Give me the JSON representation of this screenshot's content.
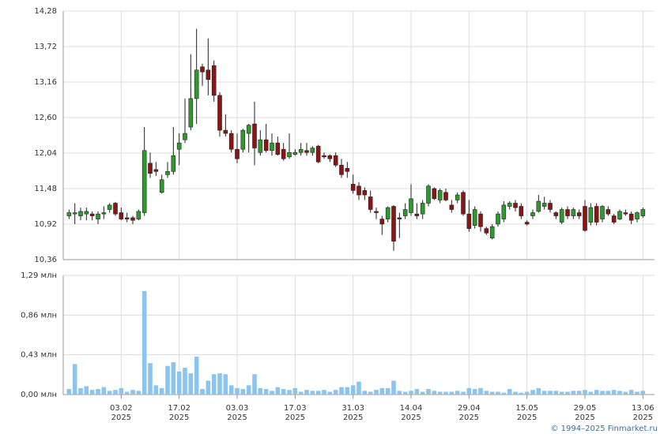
{
  "chart_data": [
    {
      "type": "candlestick",
      "up_color": "#2e9a2e",
      "down_color": "#8b1414",
      "xlim": [
        -1,
        101
      ],
      "ylim": [
        10.36,
        14.28
      ],
      "yticks": [
        {
          "value": 10.36,
          "label": "10,36"
        },
        {
          "value": 10.92,
          "label": "10,92"
        },
        {
          "value": 11.48,
          "label": "11,48"
        },
        {
          "value": 12.04,
          "label": "12,04"
        },
        {
          "value": 12.6,
          "label": "12,60"
        },
        {
          "value": 13.16,
          "label": "13,16"
        },
        {
          "value": 13.72,
          "label": "13,72"
        },
        {
          "value": 14.28,
          "label": "14,28"
        }
      ],
      "open": [
        11.05,
        11.08,
        11.05,
        11.08,
        11.08,
        11.0,
        11.08,
        11.15,
        11.25,
        11.1,
        11.02,
        11.02,
        11.0,
        11.1,
        11.88,
        11.78,
        11.42,
        11.7,
        11.75,
        12.1,
        12.25,
        12.45,
        12.9,
        13.4,
        13.35,
        13.42,
        12.95,
        12.4,
        12.35,
        12.1,
        12.1,
        12.35,
        12.5,
        12.05,
        12.25,
        12.08,
        12.2,
        12.1,
        11.98,
        12.02,
        12.05,
        12.08,
        12.05,
        12.15,
        12.0,
        12.0,
        12.0,
        11.85,
        11.8,
        11.55,
        11.52,
        11.45,
        11.35,
        11.12,
        11.0,
        11.0,
        11.2,
        11.02,
        11.05,
        11.1,
        11.08,
        11.08,
        11.25,
        11.48,
        11.3,
        11.42,
        11.22,
        11.3,
        11.42,
        11.08,
        10.9,
        11.08,
        10.85,
        10.7,
        10.92,
        11.0,
        11.2,
        11.25,
        11.2,
        10.95,
        11.05,
        11.12,
        11.2,
        11.25,
        11.1,
        10.95,
        11.15,
        11.05,
        11.1,
        11.2,
        10.95,
        11.2,
        11.0,
        11.15,
        11.05,
        11.0,
        11.1,
        11.08,
        11.0,
        11.05
      ],
      "high": [
        11.15,
        11.25,
        11.18,
        11.18,
        11.12,
        11.12,
        11.2,
        11.25,
        11.27,
        11.18,
        11.1,
        11.05,
        11.15,
        12.45,
        12.05,
        11.9,
        11.7,
        11.9,
        12.45,
        12.35,
        12.9,
        13.6,
        14.0,
        13.45,
        13.85,
        13.5,
        13.0,
        12.65,
        12.4,
        12.35,
        12.42,
        12.5,
        12.85,
        12.4,
        12.5,
        12.35,
        12.3,
        12.2,
        12.35,
        12.1,
        12.2,
        12.2,
        12.15,
        12.17,
        12.05,
        12.02,
        12.05,
        11.95,
        11.9,
        11.7,
        11.58,
        11.5,
        11.45,
        11.18,
        11.05,
        11.2,
        11.22,
        11.1,
        11.25,
        11.55,
        11.25,
        11.3,
        11.55,
        11.5,
        11.48,
        11.48,
        11.3,
        11.42,
        11.45,
        11.3,
        11.2,
        11.12,
        10.88,
        10.92,
        11.12,
        11.28,
        11.28,
        11.3,
        11.25,
        10.98,
        11.15,
        11.38,
        11.35,
        11.3,
        11.12,
        11.18,
        11.2,
        11.18,
        11.15,
        11.3,
        11.25,
        11.25,
        11.22,
        11.2,
        11.08,
        11.15,
        11.15,
        11.12,
        11.12,
        11.18
      ],
      "low": [
        11.0,
        10.92,
        10.98,
        10.98,
        10.98,
        10.92,
        11.0,
        11.1,
        11.05,
        10.98,
        10.95,
        10.92,
        10.98,
        11.05,
        11.65,
        11.68,
        11.4,
        11.65,
        11.7,
        11.85,
        12.2,
        12.4,
        12.5,
        13.1,
        12.95,
        12.85,
        12.3,
        12.3,
        12.05,
        11.88,
        12.05,
        12.05,
        11.85,
        12.0,
        12.05,
        12.0,
        12.0,
        11.92,
        11.95,
        12.0,
        12.0,
        12.0,
        12.0,
        11.88,
        11.95,
        11.9,
        11.82,
        11.65,
        11.65,
        11.4,
        11.3,
        11.3,
        11.1,
        11.0,
        10.75,
        10.95,
        10.5,
        10.7,
        11.0,
        11.05,
        11.0,
        11.0,
        11.2,
        11.3,
        11.25,
        11.28,
        11.1,
        11.25,
        11.05,
        10.8,
        10.85,
        10.8,
        10.75,
        10.68,
        10.88,
        10.95,
        11.15,
        11.12,
        11.0,
        10.9,
        11.0,
        11.1,
        11.15,
        11.1,
        11.0,
        10.92,
        11.0,
        11.0,
        11.0,
        10.8,
        10.9,
        10.9,
        10.95,
        11.05,
        10.92,
        10.98,
        11.05,
        10.92,
        10.95,
        11.02
      ],
      "close": [
        11.1,
        11.1,
        11.12,
        11.12,
        11.05,
        11.08,
        11.1,
        11.22,
        11.08,
        11.0,
        11.0,
        10.98,
        11.12,
        12.08,
        11.72,
        11.75,
        11.62,
        11.75,
        12.0,
        12.2,
        12.35,
        12.9,
        13.35,
        13.32,
        13.2,
        12.95,
        12.4,
        12.35,
        12.1,
        11.95,
        12.4,
        12.48,
        12.12,
        12.25,
        12.08,
        12.2,
        12.02,
        11.95,
        12.05,
        12.05,
        12.1,
        12.05,
        12.12,
        11.9,
        11.98,
        11.95,
        11.85,
        11.7,
        11.75,
        11.45,
        11.38,
        11.38,
        11.15,
        11.1,
        10.92,
        11.18,
        10.65,
        11.0,
        11.15,
        11.32,
        11.05,
        11.25,
        11.52,
        11.32,
        11.45,
        11.3,
        11.15,
        11.38,
        11.08,
        10.85,
        11.15,
        10.88,
        10.78,
        10.88,
        11.08,
        11.22,
        11.25,
        11.18,
        11.05,
        10.92,
        11.1,
        11.28,
        11.25,
        11.15,
        11.05,
        11.15,
        11.05,
        11.15,
        11.05,
        10.82,
        11.18,
        10.95,
        11.2,
        11.08,
        10.95,
        11.12,
        11.08,
        10.98,
        11.1,
        11.15
      ]
    },
    {
      "type": "bar",
      "color": "#8cc4ee",
      "xlim": [
        -1,
        101
      ],
      "ylim": [
        0,
        1.29
      ],
      "yticks": [
        {
          "value": 0,
          "label": "0,00 млн"
        },
        {
          "value": 0.43,
          "label": "0,43 млн"
        },
        {
          "value": 0.86,
          "label": "0,86 млн"
        },
        {
          "value": 1.29,
          "label": "1,29 млн"
        }
      ],
      "xticks": [
        {
          "value": 9,
          "label": "03.02",
          "year": "2025"
        },
        {
          "value": 19,
          "label": "17.02",
          "year": "2025"
        },
        {
          "value": 29,
          "label": "03.03",
          "year": "2025"
        },
        {
          "value": 39,
          "label": "17.03",
          "year": "2025"
        },
        {
          "value": 49,
          "label": "31.03",
          "year": "2025"
        },
        {
          "value": 59,
          "label": "14.04",
          "year": "2025"
        },
        {
          "value": 69,
          "label": "29.04",
          "year": "2025"
        },
        {
          "value": 79,
          "label": "15.05",
          "year": "2025"
        },
        {
          "value": 89,
          "label": "29.05",
          "year": "2025"
        },
        {
          "value": 99,
          "label": "13.06",
          "year": "2025"
        }
      ],
      "values": [
        0.06,
        0.33,
        0.07,
        0.09,
        0.05,
        0.06,
        0.08,
        0.04,
        0.05,
        0.07,
        0.03,
        0.05,
        0.04,
        1.12,
        0.34,
        0.1,
        0.07,
        0.31,
        0.35,
        0.25,
        0.29,
        0.23,
        0.41,
        0.06,
        0.15,
        0.22,
        0.23,
        0.22,
        0.1,
        0.07,
        0.06,
        0.1,
        0.22,
        0.07,
        0.06,
        0.04,
        0.08,
        0.06,
        0.05,
        0.07,
        0.03,
        0.05,
        0.04,
        0.04,
        0.05,
        0.03,
        0.05,
        0.08,
        0.08,
        0.1,
        0.14,
        0.04,
        0.03,
        0.05,
        0.07,
        0.07,
        0.15,
        0.04,
        0.03,
        0.04,
        0.06,
        0.03,
        0.06,
        0.04,
        0.03,
        0.03,
        0.03,
        0.04,
        0.03,
        0.07,
        0.06,
        0.07,
        0.04,
        0.03,
        0.03,
        0.02,
        0.06,
        0.03,
        0.02,
        0.03,
        0.05,
        0.07,
        0.04,
        0.04,
        0.04,
        0.03,
        0.03,
        0.04,
        0.04,
        0.05,
        0.03,
        0.05,
        0.04,
        0.04,
        0.05,
        0.04,
        0.03,
        0.05,
        0.03,
        0.04
      ]
    }
  ],
  "footer": "© 1994–2025 Finmarket.ru"
}
